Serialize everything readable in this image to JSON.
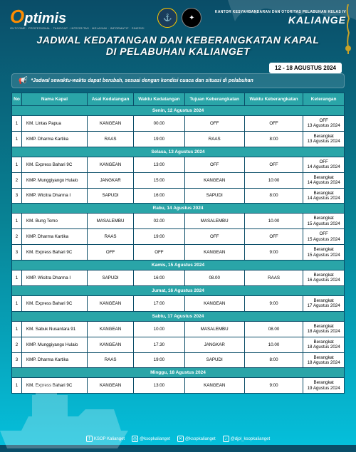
{
  "branding": {
    "left_logo_o": "O",
    "left_logo_rest": "ptimis",
    "left_tagline": "OUTCOME · PROFESIONAL · TANGGAP · INTEGRITAS · MELAYANI · INFORMATIF · SINERGI",
    "right_sub": "KANTOR KESYAHBANDARAN DAN OTORITAS PELABUHAN KELAS IV",
    "right_main": "KALIANGE"
  },
  "title": {
    "line1": "JADWAL KEDATANGAN DAN KEBERANGKATAN KAPAL",
    "line2": "DI PELABUHAN KALIANGET",
    "date_range": "12 - 18 AGUSTUS 2024",
    "note": "*Jadwal sewaktu-waktu dapat berubah, sesuai dengan kondisi cuaca dan situasi di pelabuhan"
  },
  "columns": [
    "No",
    "Nama Kapal",
    "Asal Kedatangan",
    "Waktu Kedatangan",
    "Tujuan Keberangkatan",
    "Waktu Keberangkatan",
    "Keterangan"
  ],
  "days": [
    {
      "label": "Senin, 12 Agustus 2024",
      "rows": [
        {
          "no": "1",
          "nama": "KM. Lintas Papua",
          "asal": "KANGEAN",
          "wk": "00.00",
          "tujuan": "OFF",
          "wb": "OFF",
          "ket": "OFF\n13 Agustus 2024"
        },
        {
          "no": "1",
          "nama": "KMP. Dharma Kartika",
          "asal": "RAAS",
          "wk": "19:00",
          "tujuan": "RAAS",
          "wb": "8:00",
          "ket": "Berangkat\n13 Agustus 2024"
        }
      ]
    },
    {
      "label": "Selasa, 13 Agustus 2024",
      "rows": [
        {
          "no": "1",
          "nama": "KM. Express Bahari 9C",
          "asal": "KANGEAN",
          "wk": "13:00",
          "tujuan": "OFF",
          "wb": "OFF",
          "ket": "OFF\n14 Agustus 2024"
        },
        {
          "no": "2",
          "nama": "KMP. Munggiyango Hulalo",
          "asal": "JANGKAR",
          "wk": "15:00",
          "tujuan": "KANGEAN",
          "wb": "10:00",
          "ket": "Berangkat\n14 Agustus 2024"
        },
        {
          "no": "3",
          "nama": "KMP. Wicitra Dharma I",
          "asal": "SAPUDI",
          "wk": "16:00",
          "tujuan": "SAPUDI",
          "wb": "8:00",
          "ket": "Berangkat\n14 Agustus 2024"
        }
      ]
    },
    {
      "label": "Rabu, 14 Agustus 2024",
      "rows": [
        {
          "no": "1",
          "nama": "KM. Bung Tomo",
          "asal": "MASALEMBU",
          "wk": "02.00",
          "tujuan": "MASALEMBU",
          "wb": "10.00",
          "ket": "Berangkat\n15 Agustus 2024"
        },
        {
          "no": "2",
          "nama": "KMP. Dharma Kartika",
          "asal": "RAAS",
          "wk": "19:00",
          "tujuan": "OFF",
          "wb": "OFF",
          "ket": "OFF\n15 Agustus 2024"
        },
        {
          "no": "3",
          "nama": "KM. Express Bahari 9C",
          "asal": "OFF",
          "wk": "OFF",
          "tujuan": "KANGEAN",
          "wb": "9:00",
          "ket": "Berangkat\n15 Agustus 2024"
        }
      ]
    },
    {
      "label": "Kamis, 15 Agustus 2024",
      "rows": [
        {
          "no": "1",
          "nama": "KMP. Wicitra Dharma I",
          "asal": "SAPUDI",
          "wk": "16:00",
          "tujuan": "08.00",
          "wb": "RAAS",
          "ket": "Berangkat\n16 Agustus 2024"
        }
      ]
    },
    {
      "label": "Jumat, 16 Agustus 2024",
      "rows": [
        {
          "no": "1",
          "nama": "KM. Express Bahari 9C",
          "asal": "KANGEAN",
          "wk": "17:00",
          "tujuan": "KANGEAN",
          "wb": "9:00",
          "ket": "Berangkat\n17 Agustus 2024"
        }
      ]
    },
    {
      "label": "Sabtu, 17 Agustus 2024",
      "rows": [
        {
          "no": "1",
          "nama": "KM. Sabuk Nusantara 91",
          "asal": "KANGEAN",
          "wk": "10.00",
          "tujuan": "MASALEMBU",
          "wb": "08.00",
          "ket": "Berangkat\n18 Agustus 2024"
        },
        {
          "no": "2",
          "nama": "KMP. Munggiyango Hulalo",
          "asal": "KANGEAN",
          "wk": "17.30",
          "tujuan": "JANGKAR",
          "wb": "10.00",
          "ket": "Berangkat\n18 Agustus 2024"
        },
        {
          "no": "3",
          "nama": "KMP. Dharma Kartika",
          "asal": "RAAS",
          "wk": "19:00",
          "tujuan": "SAPUDI",
          "wb": "8:00",
          "ket": "Berangkat\n18 Agustus 2024"
        }
      ]
    },
    {
      "label": "Minggu, 18 Agustus 2024",
      "rows": [
        {
          "no": "1",
          "nama": "KM. Express Bahari 9C",
          "asal": "KANGEAN",
          "wk": "13:00",
          "tujuan": "KANGEAN",
          "wb": "9:00",
          "ket": "Berangkat\n19 Agustus 2024"
        }
      ]
    }
  ],
  "footer": {
    "fb": "KSOP Kalianget",
    "ig": "@ksopkalianget",
    "tw": "@ksopkalianget",
    "tt": "@djpl_ksopkalianget"
  },
  "colors": {
    "header_bg": "#2aa5a8",
    "border": "#0a4d68",
    "accent_orange": "#ff8c00"
  }
}
